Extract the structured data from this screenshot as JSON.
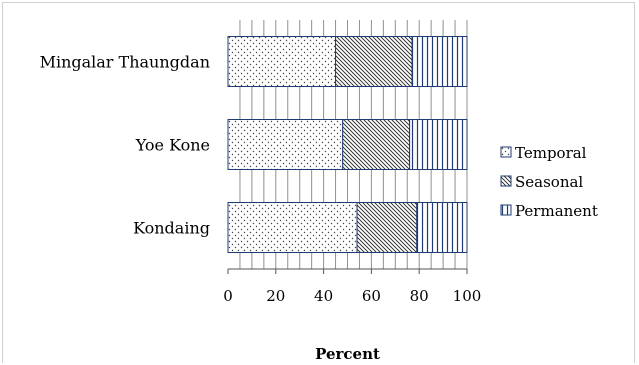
{
  "chart_data": {
    "type": "bar",
    "orientation": "horizontal",
    "stacked": true,
    "categories": [
      "Mingalar Thaungdan",
      "Yoe Kone",
      "Kondaing"
    ],
    "series": [
      {
        "name": "Temporal",
        "values": [
          45,
          48,
          54
        ],
        "pattern": "dots"
      },
      {
        "name": "Seasonal",
        "values": [
          32,
          28,
          25
        ],
        "pattern": "diagonal"
      },
      {
        "name": "Permanent",
        "values": [
          23,
          24,
          21
        ],
        "pattern": "vertical"
      }
    ],
    "xlabel": "Percent",
    "xlim": [
      0,
      100
    ],
    "xticks": [
      "0",
      "20",
      "40",
      "60",
      "80",
      "100"
    ],
    "grid": "vertical",
    "legend": "right"
  }
}
